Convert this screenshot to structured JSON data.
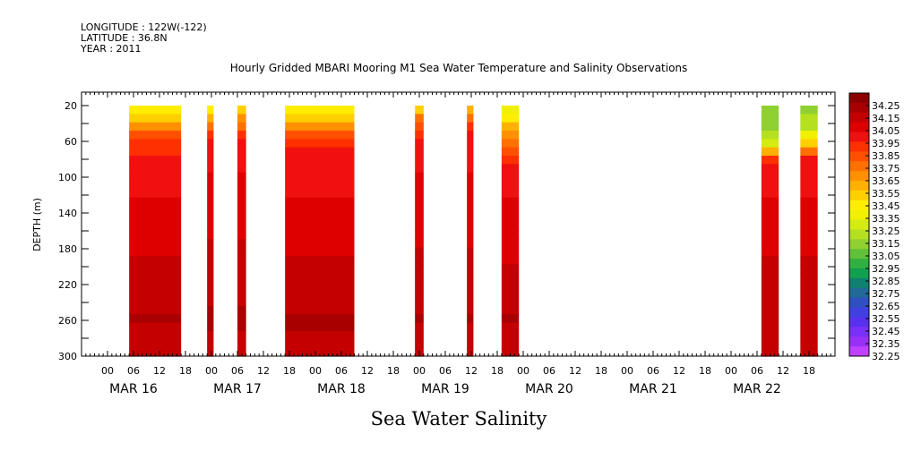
{
  "header": {
    "longitude": "LONGITUDE : 122W(-122)",
    "latitude": "LATITUDE : 36.8N",
    "year": "YEAR : 2011"
  },
  "chart_data": {
    "type": "heatmap",
    "title": "Hourly Gridded MBARI Mooring M1 Sea Water Temperature and Salinity Observations",
    "xlabel": "Sea Water Salinity",
    "ylabel": "DEPTH (m)",
    "ylim": [
      300,
      5
    ],
    "y_ticks": [
      20,
      60,
      100,
      140,
      180,
      220,
      260,
      300
    ],
    "x_range_hours": [
      -6,
      168
    ],
    "x_tick_hours": [
      0,
      6,
      12,
      18
    ],
    "x_tick_labels": [
      "00",
      "06",
      "12",
      "18"
    ],
    "x_days": [
      {
        "label": "MAR 16",
        "start_hour": 0
      },
      {
        "label": "MAR 17",
        "start_hour": 24
      },
      {
        "label": "MAR 18",
        "start_hour": 48
      },
      {
        "label": "MAR 19",
        "start_hour": 72
      },
      {
        "label": "MAR 20",
        "start_hour": 96
      },
      {
        "label": "MAR 21",
        "start_hour": 120
      },
      {
        "label": "MAR 22",
        "start_hour": 144
      }
    ],
    "depths": [
      20,
      40,
      60,
      80,
      100,
      120,
      140,
      160,
      180,
      200,
      220,
      240,
      260,
      280,
      300
    ],
    "data_segments": [
      {
        "start_hour": 5,
        "end_hour": 17,
        "salinity": [
          33.38,
          33.6,
          33.93,
          33.98,
          34.02,
          34.04,
          34.07,
          34.09,
          34.11,
          34.13,
          34.15,
          34.18,
          34.2,
          34.17,
          34.15
        ]
      },
      {
        "start_hour": 23,
        "end_hour": 24.5,
        "salinity": [
          33.4,
          33.7,
          34.0,
          34.02,
          34.05,
          34.07,
          34.09,
          34.11,
          34.13,
          34.15,
          34.17,
          34.19,
          34.21,
          34.18,
          34.16
        ]
      },
      {
        "start_hour": 30,
        "end_hour": 32,
        "salinity": [
          33.45,
          33.75,
          34.0,
          34.02,
          34.05,
          34.07,
          34.09,
          34.11,
          34.13,
          34.15,
          34.17,
          34.19,
          34.21,
          34.18,
          34.16
        ]
      },
      {
        "start_hour": 41,
        "end_hour": 57,
        "salinity": [
          33.38,
          33.62,
          33.95,
          33.99,
          34.02,
          34.04,
          34.07,
          34.09,
          34.11,
          34.13,
          34.15,
          34.18,
          34.21,
          34.17,
          34.15
        ]
      },
      {
        "start_hour": 71,
        "end_hour": 73,
        "salinity": [
          33.45,
          33.85,
          34.0,
          34.02,
          34.04,
          34.06,
          34.08,
          34.1,
          34.12,
          34.14,
          34.16,
          34.18,
          34.2,
          34.17,
          34.15
        ]
      },
      {
        "start_hour": 83,
        "end_hour": 84.5,
        "salinity": [
          33.5,
          33.9,
          34.0,
          34.02,
          34.04,
          34.06,
          34.08,
          34.1,
          34.12,
          34.14,
          34.16,
          34.18,
          34.2,
          34.17,
          34.15
        ]
      },
      {
        "start_hour": 91,
        "end_hour": 95,
        "salinity": [
          33.32,
          33.55,
          33.72,
          33.95,
          34.0,
          34.03,
          34.06,
          34.08,
          34.1,
          34.12,
          34.15,
          34.17,
          34.2,
          34.16,
          34.14
        ]
      },
      {
        "start_hour": 151,
        "end_hour": 155,
        "salinity": [
          33.12,
          33.15,
          33.22,
          33.95,
          34.01,
          34.04,
          34.06,
          34.08,
          34.1,
          34.13,
          34.15,
          34.17,
          34.19,
          34.16,
          34.14
        ]
      },
      {
        "start_hour": 160,
        "end_hour": 164,
        "salinity": [
          33.15,
          33.2,
          33.45,
          33.97,
          34.02,
          34.04,
          34.06,
          34.08,
          34.1,
          34.13,
          34.15,
          34.17,
          34.19,
          34.16,
          34.14
        ]
      }
    ],
    "colorbar": {
      "min": 32.25,
      "max": 34.35,
      "labels": [
        "34.25",
        "34.15",
        "34.05",
        "33.95",
        "33.85",
        "33.75",
        "33.65",
        "33.55",
        "33.45",
        "33.35",
        "33.25",
        "33.15",
        "33.05",
        "32.95",
        "32.85",
        "32.75",
        "32.65",
        "32.55",
        "32.45",
        "32.35",
        "32.25"
      ],
      "colors": [
        "#8c0000",
        "#a80000",
        "#c40000",
        "#de0000",
        "#f01010",
        "#ff3000",
        "#ff5000",
        "#ff7000",
        "#ff9000",
        "#ffb000",
        "#ffd000",
        "#ffee00",
        "#f0f000",
        "#d4ec10",
        "#b4e020",
        "#90d030",
        "#60c038",
        "#30b040",
        "#10a050",
        "#108070",
        "#206a98",
        "#3050c0",
        "#4040e0",
        "#5a30f0",
        "#7a30f8",
        "#9830f8",
        "#c040ff"
      ]
    }
  }
}
